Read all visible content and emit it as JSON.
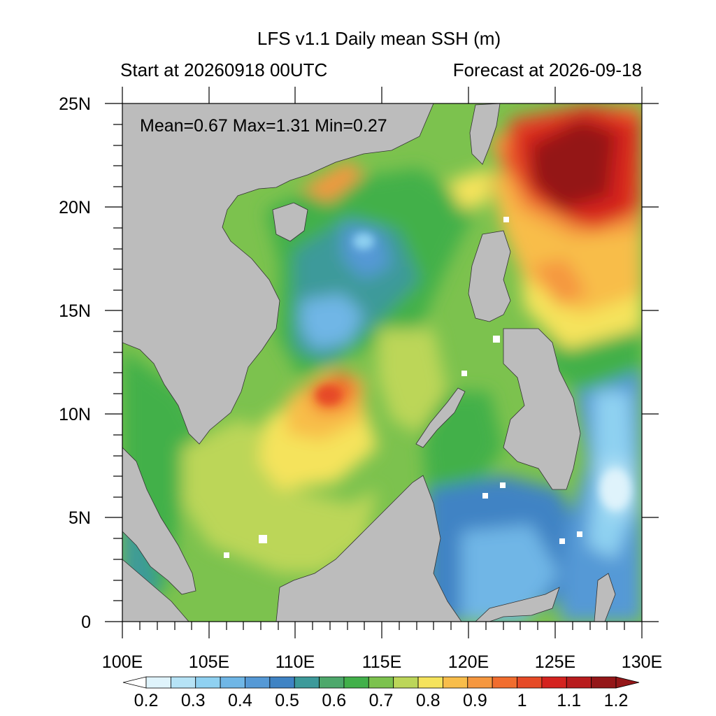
{
  "header": {
    "title": "LFS v1.1 Daily mean SSH (m)",
    "start_text": "Start at 20260918 00UTC",
    "forecast_text": "Forecast at 2026-09-18"
  },
  "stats": {
    "text": "Mean=0.67  Max=1.31  Min=0.27"
  },
  "axes": {
    "x_ticks": [
      "100E",
      "105E",
      "110E",
      "115E",
      "120E",
      "125E",
      "130E"
    ],
    "y_ticks": [
      "25N",
      "20N",
      "15N",
      "10N",
      "5N",
      "0"
    ]
  },
  "colorbar": {
    "labels": [
      "0.2",
      "0.3",
      "0.4",
      "0.5",
      "0.6",
      "0.7",
      "0.8",
      "0.9",
      "1",
      "1.1",
      "1.2"
    ],
    "colors": [
      "#dff3fb",
      "#b6e3f6",
      "#8fd1f1",
      "#6fb6e6",
      "#5599d6",
      "#3f83c4",
      "#3d9a9a",
      "#4da86b",
      "#42b04a",
      "#7cc24e",
      "#bcd659",
      "#f5e35c",
      "#f8bd4a",
      "#f5973f",
      "#f16d2e",
      "#e64a26",
      "#d4231f",
      "#b81c1d",
      "#941618"
    ],
    "low_color": "#ffffff",
    "high_color": "#941618"
  },
  "map": {
    "land_color": "#bcbcbc",
    "ocean_color": "#7cc24e",
    "lon_range": [
      100,
      130
    ],
    "lat_range": [
      0,
      25
    ]
  }
}
